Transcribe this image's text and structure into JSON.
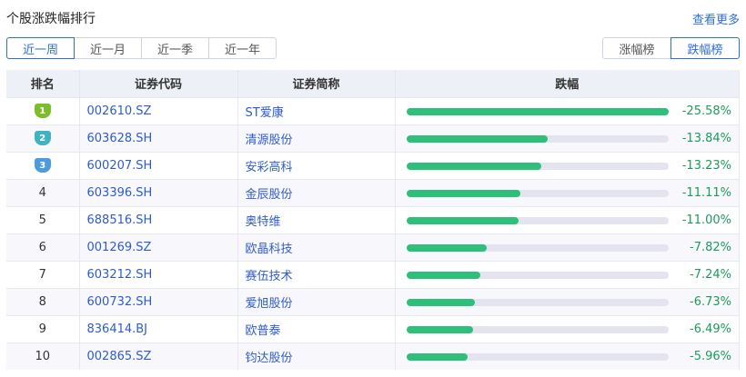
{
  "header": {
    "title": "个股涨跌幅排行",
    "more": "查看更多"
  },
  "period_tabs": [
    {
      "label": "近一周",
      "active": true
    },
    {
      "label": "近一月",
      "active": false
    },
    {
      "label": "近一季",
      "active": false
    },
    {
      "label": "近一年",
      "active": false
    }
  ],
  "direction_tabs": [
    {
      "label": "涨幅榜",
      "active": false
    },
    {
      "label": "跌幅榜",
      "active": true
    }
  ],
  "table": {
    "columns": [
      "排名",
      "证券代码",
      "证券简称",
      "跌幅"
    ],
    "rows": [
      {
        "rank": "1",
        "code": "002610.SZ",
        "name": "ST爱康",
        "change": "-25.58%",
        "value": 25.58
      },
      {
        "rank": "2",
        "code": "603628.SH",
        "name": "清源股份",
        "change": "-13.84%",
        "value": 13.84
      },
      {
        "rank": "3",
        "code": "600207.SH",
        "name": "安彩高科",
        "change": "-13.23%",
        "value": 13.23
      },
      {
        "rank": "4",
        "code": "603396.SH",
        "name": "金辰股份",
        "change": "-11.11%",
        "value": 11.11
      },
      {
        "rank": "5",
        "code": "688516.SH",
        "name": "奥特维",
        "change": "-11.00%",
        "value": 11.0
      },
      {
        "rank": "6",
        "code": "001269.SZ",
        "name": "欧晶科技",
        "change": "-7.82%",
        "value": 7.82
      },
      {
        "rank": "7",
        "code": "603212.SH",
        "name": "赛伍技术",
        "change": "-7.24%",
        "value": 7.24
      },
      {
        "rank": "8",
        "code": "600732.SH",
        "name": "爱旭股份",
        "change": "-6.73%",
        "value": 6.73
      },
      {
        "rank": "9",
        "code": "836414.BJ",
        "name": "欧普泰",
        "change": "-6.49%",
        "value": 6.49
      },
      {
        "rank": "10",
        "code": "002865.SZ",
        "name": "钧达股份",
        "change": "-5.96%",
        "value": 5.96
      }
    ]
  },
  "colors": {
    "accent": "#2f6fd8",
    "bar": "#2ec07a",
    "bar_track": "#e4e4f0",
    "negative_text": "#1f9a5a",
    "medal_1": "#7cbd2c",
    "medal_2": "#3fb3c6",
    "medal_3": "#4c9be0"
  }
}
